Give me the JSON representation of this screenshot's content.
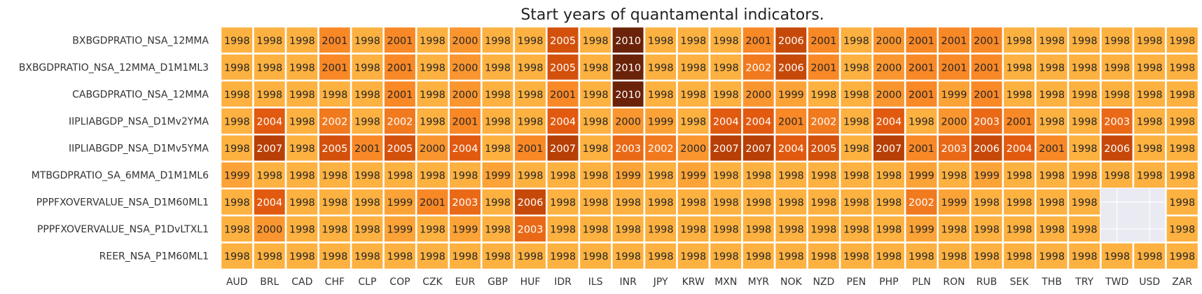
{
  "chart_data": {
    "type": "heatmap",
    "title": "Start years of quantamental indicators.",
    "xlabel": "",
    "ylabel": "",
    "colorbar": false,
    "missing_color": "#eaeaf2",
    "color_scale": {
      "min": 1998,
      "max": 2010,
      "stops": [
        "#fdb140",
        "#f98826",
        "#e25a0f",
        "#b84006",
        "#6a2208"
      ]
    },
    "x_categories": [
      "AUD",
      "BRL",
      "CAD",
      "CHF",
      "CLP",
      "COP",
      "CZK",
      "EUR",
      "GBP",
      "HUF",
      "IDR",
      "ILS",
      "INR",
      "JPY",
      "KRW",
      "MXN",
      "MYR",
      "NOK",
      "NZD",
      "PEN",
      "PHP",
      "PLN",
      "RON",
      "RUB",
      "SEK",
      "THB",
      "TRY",
      "TWD",
      "USD",
      "ZAR"
    ],
    "y_categories": [
      "BXBGDPRATIO_NSA_12MMA",
      "BXBGDPRATIO_NSA_12MMA_D1M1ML3",
      "CABGDPRATIO_NSA_12MMA",
      "IIPLIABGDP_NSA_D1Mv2YMA",
      "IIPLIABGDP_NSA_D1Mv5YMA",
      "MTBGDPRATIO_SA_6MMA_D1M1ML6",
      "PPPFXOVERVALUE_NSA_D1M60ML1",
      "PPPFXOVERVALUE_NSA_P1DvLTXL1",
      "REER_NSA_P1M60ML1"
    ],
    "values": [
      [
        1998,
        1998,
        1998,
        2001,
        1998,
        2001,
        1998,
        2000,
        1998,
        1998,
        2005,
        1998,
        2010,
        1998,
        1998,
        1998,
        2001,
        2006,
        2001,
        1998,
        2000,
        2001,
        2001,
        2001,
        1998,
        1998,
        1998,
        1998,
        1998,
        1998
      ],
      [
        1998,
        1998,
        1998,
        2001,
        1998,
        2001,
        1998,
        2000,
        1998,
        1998,
        2005,
        1998,
        2010,
        1998,
        1998,
        1998,
        2002,
        2006,
        2001,
        1998,
        2000,
        2001,
        2001,
        2001,
        1998,
        1998,
        1998,
        1998,
        1998,
        1998
      ],
      [
        1998,
        1998,
        1998,
        1998,
        1998,
        2001,
        1998,
        2000,
        1998,
        1998,
        2001,
        1998,
        2010,
        1998,
        1998,
        1998,
        2000,
        1999,
        1998,
        1998,
        2000,
        2001,
        1999,
        2001,
        1998,
        1998,
        1998,
        1998,
        1998,
        1998
      ],
      [
        1998,
        2004,
        1998,
        2002,
        1998,
        2002,
        1998,
        2001,
        1998,
        1998,
        2004,
        1998,
        2000,
        1999,
        1998,
        2004,
        2004,
        2001,
        2002,
        1998,
        2004,
        1998,
        2000,
        2003,
        2001,
        1998,
        1998,
        2003,
        1998,
        1998
      ],
      [
        1998,
        2007,
        1998,
        2005,
        2001,
        2005,
        2000,
        2004,
        1998,
        2001,
        2007,
        1998,
        2003,
        2002,
        2000,
        2007,
        2007,
        2004,
        2005,
        1998,
        2007,
        2001,
        2003,
        2006,
        2004,
        2001,
        1998,
        2006,
        1998,
        1998
      ],
      [
        1999,
        1998,
        1998,
        1998,
        1998,
        1998,
        1998,
        1998,
        1999,
        1998,
        1998,
        1998,
        1999,
        1998,
        1999,
        1998,
        1998,
        1998,
        1998,
        1998,
        1998,
        1999,
        1998,
        1999,
        1998,
        1998,
        1998,
        1998,
        1998,
        1998
      ],
      [
        1998,
        2004,
        1998,
        1998,
        1998,
        1999,
        2001,
        2003,
        1998,
        2006,
        1998,
        1998,
        1998,
        1998,
        1998,
        1998,
        1998,
        1998,
        1998,
        1998,
        1998,
        2002,
        1999,
        1998,
        1998,
        1998,
        1998,
        null,
        null,
        1998
      ],
      [
        1998,
        2000,
        1998,
        1998,
        1998,
        1999,
        1998,
        1999,
        1998,
        2003,
        1998,
        1998,
        1998,
        1998,
        1998,
        1998,
        1998,
        1998,
        1998,
        1998,
        1998,
        1999,
        1998,
        1998,
        1998,
        1998,
        1998,
        null,
        null,
        1998
      ],
      [
        1998,
        1998,
        1998,
        1998,
        1998,
        1998,
        1998,
        1998,
        1998,
        1998,
        1998,
        1998,
        1998,
        1998,
        1998,
        1998,
        1998,
        1998,
        1998,
        1998,
        1998,
        1998,
        1998,
        1998,
        1998,
        1998,
        1998,
        1998,
        1998,
        1998
      ]
    ]
  }
}
